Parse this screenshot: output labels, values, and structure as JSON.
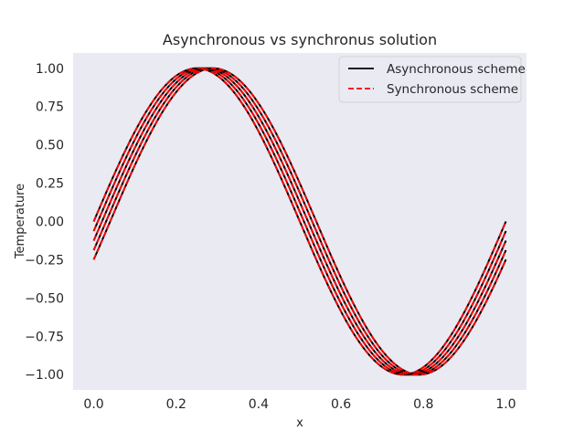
{
  "chart_data": {
    "type": "line",
    "title": "Asynchronous vs synchronus solution",
    "xlabel": "x",
    "ylabel": "Temperature",
    "xlim": [
      -0.05,
      1.05
    ],
    "ylim": [
      -1.1,
      1.1
    ],
    "xticks": [
      0.0,
      0.2,
      0.4,
      0.6,
      0.8,
      1.0
    ],
    "xtick_labels": [
      "0.0",
      "0.2",
      "0.4",
      "0.6",
      "0.8",
      "1.0"
    ],
    "yticks": [
      1.0,
      0.75,
      0.5,
      0.25,
      0.0,
      -0.25,
      -0.5,
      -0.75,
      -1.0
    ],
    "ytick_labels": [
      "1.00",
      "0.75",
      "0.50",
      "0.25",
      "0.00",
      "−0.25",
      "−0.50",
      "−0.75",
      "−1.00"
    ],
    "grid": false,
    "legend_position": "top-right",
    "background_color": "#eaeaf2",
    "function": "y = sin(2*pi*(x - t)) for each curve offset t",
    "curve_phase_offsets": [
      0.0,
      0.01,
      0.02,
      0.03,
      0.04
    ],
    "x_range": [
      0.0,
      1.0
    ],
    "series": [
      {
        "name": "Asynchronous scheme",
        "color": "#000000",
        "style": "solid"
      },
      {
        "name": "Synchronous scheme",
        "color": "#ff0000",
        "style": "dashed"
      }
    ]
  }
}
